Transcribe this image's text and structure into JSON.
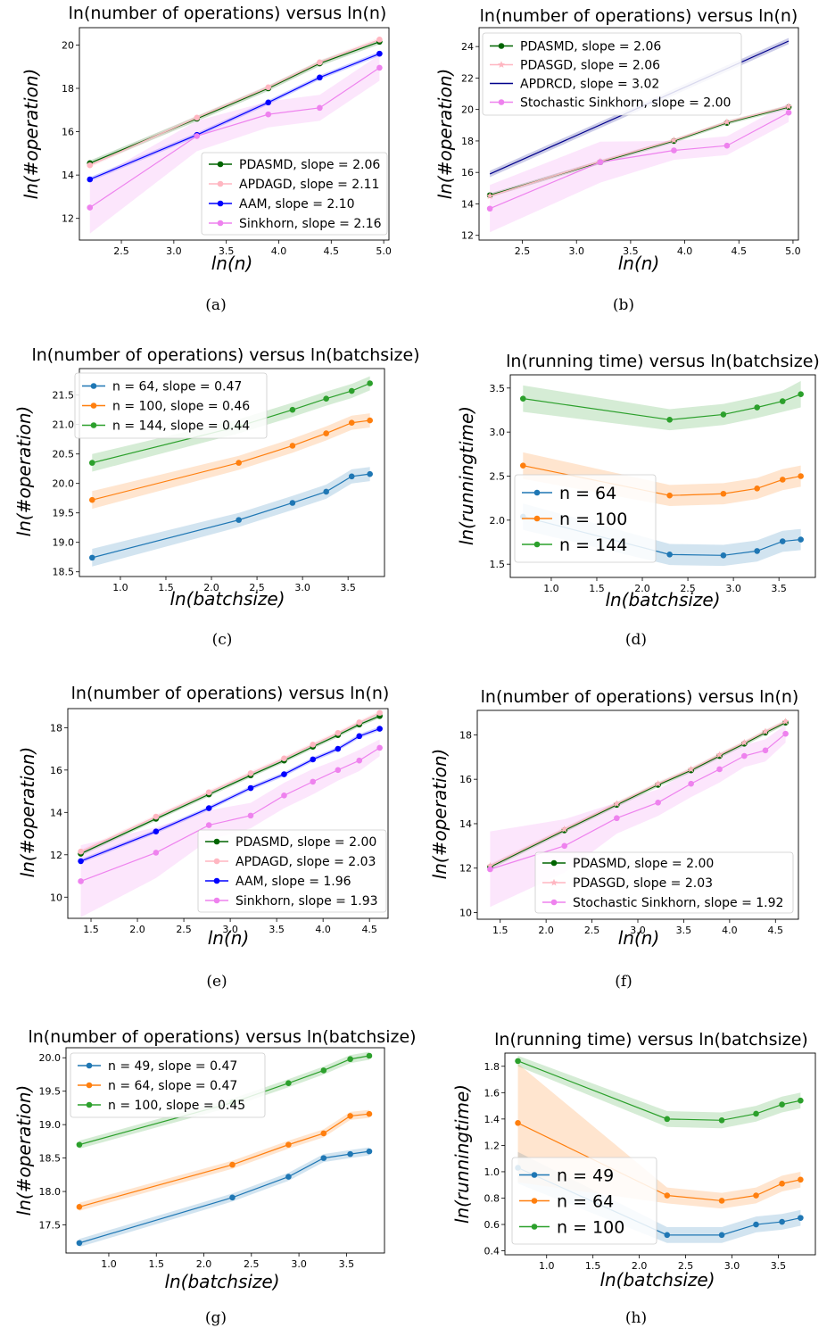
{
  "chart_data": [
    {
      "panel": "a",
      "type": "line",
      "title": "ln(number of operations) versus ln(n)",
      "xlabel": "ln(n)",
      "ylabel": "ln(#operation)",
      "xlim": [
        2.1,
        5.05
      ],
      "ylim": [
        11.0,
        20.8
      ],
      "xticks": [
        2.5,
        3.0,
        3.5,
        4.0,
        4.5,
        5.0
      ],
      "yticks": [
        12,
        14,
        16,
        18,
        20
      ],
      "legend_position": "lower-right",
      "caption": "(a)",
      "series": [
        {
          "name": "PDASMD, slope = 2.06",
          "color": "#006400",
          "marker": "o",
          "x": [
            2.2,
            3.22,
            3.9,
            4.39,
            4.96
          ],
          "y": [
            14.55,
            16.6,
            18.0,
            19.15,
            20.15
          ],
          "band": [
            0.12,
            0.12,
            0.12,
            0.12,
            0.12
          ]
        },
        {
          "name": "APDAGD, slope = 2.11",
          "color": "#ffb6c1",
          "marker": "o",
          "x": [
            2.2,
            3.22,
            3.9,
            4.39,
            4.96
          ],
          "y": [
            14.45,
            16.65,
            18.05,
            19.2,
            20.25
          ],
          "band": [
            0.1,
            0.1,
            0.1,
            0.1,
            0.1
          ]
        },
        {
          "name": "AAM, slope = 2.10",
          "color": "#0000ff",
          "marker": "o",
          "x": [
            2.2,
            3.22,
            3.9,
            4.39,
            4.96
          ],
          "y": [
            13.8,
            15.85,
            17.35,
            18.5,
            19.6
          ],
          "band": [
            0.1,
            0.1,
            0.1,
            0.1,
            0.1
          ]
        },
        {
          "name": "Sinkhorn, slope = 2.16",
          "color": "#ee82ee",
          "marker": "o",
          "x": [
            2.2,
            3.22,
            3.9,
            4.39,
            4.96
          ],
          "y": [
            12.5,
            15.8,
            16.8,
            17.1,
            18.95
          ],
          "band": [
            1.2,
            0.7,
            0.6,
            0.6,
            0.6
          ]
        }
      ]
    },
    {
      "panel": "b",
      "type": "line",
      "title": "ln(number of operations) versus ln(n)",
      "xlabel": "ln(n)",
      "ylabel": "ln(#operation)",
      "xlim": [
        2.1,
        5.05
      ],
      "ylim": [
        11.7,
        25.2
      ],
      "xticks": [
        2.5,
        3.0,
        3.5,
        4.0,
        4.5,
        5.0
      ],
      "yticks": [
        12,
        14,
        16,
        18,
        20,
        22,
        24
      ],
      "legend_position": "upper-left",
      "caption": "(b)",
      "series": [
        {
          "name": "PDASMD, slope = 2.06",
          "color": "#006400",
          "marker": "o",
          "x": [
            2.2,
            3.22,
            3.9,
            4.39,
            4.96
          ],
          "y": [
            14.55,
            16.65,
            18.0,
            19.15,
            20.15
          ],
          "band": [
            0.12,
            0.12,
            0.12,
            0.12,
            0.12
          ]
        },
        {
          "name": "PDASGD, slope = 2.06",
          "color": "#ffb6c1",
          "marker": "*",
          "x": [
            2.2,
            3.22,
            3.9,
            4.39,
            4.96
          ],
          "y": [
            14.5,
            16.7,
            18.05,
            19.2,
            20.2
          ],
          "band": [
            0.1,
            0.1,
            0.1,
            0.1,
            0.1
          ]
        },
        {
          "name": "APDRCD, slope = 3.02",
          "color": "#00008b",
          "marker": "",
          "x": [
            2.2,
            4.96
          ],
          "y": [
            15.9,
            24.35
          ],
          "band": [
            0.2,
            0.2
          ]
        },
        {
          "name": "Stochastic Sinkhorn, slope = 2.00",
          "color": "#ee82ee",
          "marker": "o",
          "x": [
            2.2,
            3.22,
            3.9,
            4.39,
            4.96
          ],
          "y": [
            13.7,
            16.65,
            17.4,
            17.7,
            19.8
          ],
          "band": [
            1.5,
            1.3,
            0.6,
            0.6,
            0.6
          ]
        }
      ]
    },
    {
      "panel": "c",
      "type": "line",
      "title": "ln(number of operations) versus ln(batchsize)",
      "xlabel": "ln(batchsize)",
      "ylabel": "ln(#operation)",
      "xlim": [
        0.55,
        3.9
      ],
      "ylim": [
        18.42,
        21.95
      ],
      "xticks": [
        1.0,
        1.5,
        2.0,
        2.5,
        3.0,
        3.5
      ],
      "yticks": [
        18.5,
        19.0,
        19.5,
        20.0,
        20.5,
        21.0,
        21.5
      ],
      "legend_position": "upper-left",
      "caption": "(c)",
      "series": [
        {
          "name": "n = 64, slope = 0.47",
          "color": "#1f77b4",
          "marker": "o",
          "x": [
            0.69,
            2.3,
            2.89,
            3.26,
            3.54,
            3.74
          ],
          "y": [
            18.74,
            19.38,
            19.67,
            19.86,
            20.12,
            20.16
          ],
          "band": [
            0.15,
            0.12,
            0.12,
            0.12,
            0.12,
            0.12
          ]
        },
        {
          "name": "n = 100, slope = 0.46",
          "color": "#ff7f0e",
          "marker": "o",
          "x": [
            0.69,
            2.3,
            2.89,
            3.26,
            3.54,
            3.74
          ],
          "y": [
            19.72,
            20.35,
            20.64,
            20.85,
            21.03,
            21.07
          ],
          "band": [
            0.15,
            0.12,
            0.12,
            0.12,
            0.12,
            0.12
          ]
        },
        {
          "name": "n = 144, slope = 0.44",
          "color": "#2ca02c",
          "marker": "o",
          "x": [
            0.69,
            2.3,
            2.89,
            3.26,
            3.54,
            3.74
          ],
          "y": [
            20.35,
            20.97,
            21.25,
            21.44,
            21.57,
            21.7
          ],
          "band": [
            0.15,
            0.12,
            0.12,
            0.12,
            0.12,
            0.12
          ]
        }
      ]
    },
    {
      "panel": "d",
      "type": "line",
      "title": "ln(running time) versus ln(batchsize)",
      "xlabel": "ln(batchsize)",
      "ylabel": "ln(runningtime)",
      "xlim": [
        0.55,
        3.9
      ],
      "ylim": [
        1.35,
        3.65
      ],
      "xticks": [
        1.0,
        1.5,
        2.0,
        2.5,
        3.0,
        3.5
      ],
      "yticks": [
        1.5,
        2.0,
        2.5,
        3.0,
        3.5
      ],
      "legend_position": "lower-left",
      "caption": "(d)",
      "series": [
        {
          "name": "n = 64",
          "color": "#1f77b4",
          "marker": "o",
          "x": [
            0.69,
            2.3,
            2.89,
            3.26,
            3.54,
            3.74
          ],
          "y": [
            2.04,
            1.61,
            1.6,
            1.65,
            1.76,
            1.78
          ],
          "band": [
            0.15,
            0.12,
            0.12,
            0.12,
            0.12,
            0.12
          ]
        },
        {
          "name": "n = 100",
          "color": "#ff7f0e",
          "marker": "o",
          "x": [
            0.69,
            2.3,
            2.89,
            3.26,
            3.54,
            3.74
          ],
          "y": [
            2.62,
            2.28,
            2.3,
            2.36,
            2.46,
            2.5
          ],
          "band": [
            0.15,
            0.12,
            0.12,
            0.12,
            0.12,
            0.12
          ]
        },
        {
          "name": "n = 144",
          "color": "#2ca02c",
          "marker": "o",
          "x": [
            0.69,
            2.3,
            2.89,
            3.26,
            3.54,
            3.74
          ],
          "y": [
            3.38,
            3.14,
            3.2,
            3.28,
            3.35,
            3.43
          ],
          "band": [
            0.15,
            0.12,
            0.12,
            0.12,
            0.12,
            0.15
          ]
        }
      ]
    },
    {
      "panel": "e",
      "type": "line",
      "title": "ln(number of operations) versus ln(n)",
      "xlabel": "ln(n)",
      "ylabel": "ln(#operation)",
      "xlim": [
        1.25,
        4.7
      ],
      "ylim": [
        9.0,
        18.9
      ],
      "xticks": [
        1.5,
        2.0,
        2.5,
        3.0,
        3.5,
        4.0,
        4.5
      ],
      "yticks": [
        10,
        12,
        14,
        16,
        18
      ],
      "legend_position": "lower-right",
      "caption": "(e)",
      "series": [
        {
          "name": "PDASMD, slope = 2.00",
          "color": "#006400",
          "marker": "o",
          "x": [
            1.39,
            2.2,
            2.77,
            3.22,
            3.58,
            3.89,
            4.16,
            4.39,
            4.61
          ],
          "y": [
            12.05,
            13.7,
            14.85,
            15.75,
            16.45,
            17.1,
            17.65,
            18.15,
            18.55
          ],
          "band": [
            0.1,
            0.1,
            0.1,
            0.1,
            0.1,
            0.1,
            0.1,
            0.1,
            0.1
          ]
        },
        {
          "name": "APDAGD, slope = 2.03",
          "color": "#ffb6c1",
          "marker": "o",
          "x": [
            1.39,
            2.2,
            2.77,
            3.22,
            3.58,
            3.89,
            4.16,
            4.39,
            4.61
          ],
          "y": [
            12.15,
            13.8,
            14.95,
            15.85,
            16.55,
            17.2,
            17.75,
            18.25,
            18.7
          ],
          "band": [
            0.1,
            0.1,
            0.1,
            0.1,
            0.1,
            0.1,
            0.1,
            0.1,
            0.1
          ]
        },
        {
          "name": "AAM, slope = 1.96",
          "color": "#0000ff",
          "marker": "o",
          "x": [
            1.39,
            2.2,
            2.77,
            3.22,
            3.58,
            3.89,
            4.16,
            4.39,
            4.61
          ],
          "y": [
            11.7,
            13.1,
            14.2,
            15.15,
            15.8,
            16.5,
            17.0,
            17.6,
            17.95
          ],
          "band": [
            0.1,
            0.1,
            0.1,
            0.1,
            0.1,
            0.1,
            0.1,
            0.1,
            0.1
          ]
        },
        {
          "name": "Sinkhorn, slope = 1.93",
          "color": "#ee82ee",
          "marker": "o",
          "x": [
            1.39,
            2.2,
            2.77,
            3.22,
            3.58,
            3.89,
            4.16,
            4.39,
            4.61
          ],
          "y": [
            10.75,
            12.1,
            13.4,
            13.85,
            14.8,
            15.45,
            16.0,
            16.45,
            17.05
          ],
          "band": [
            1.7,
            1.2,
            0.7,
            0.6,
            0.6,
            0.6,
            0.5,
            0.5,
            0.4
          ]
        }
      ]
    },
    {
      "panel": "f",
      "type": "line",
      "title": "ln(number of operations) versus ln(n)",
      "xlabel": "ln(n)",
      "ylabel": "ln(#operation)",
      "xlim": [
        1.25,
        4.75
      ],
      "ylim": [
        9.7,
        19.1
      ],
      "xticks": [
        1.5,
        2.0,
        2.5,
        3.0,
        3.5,
        4.0,
        4.5
      ],
      "yticks": [
        10,
        12,
        14,
        16,
        18
      ],
      "legend_position": "lower-right",
      "caption": "(f)",
      "series": [
        {
          "name": "PDASMD, slope = 2.00",
          "color": "#006400",
          "marker": "o",
          "x": [
            1.39,
            2.2,
            2.77,
            3.22,
            3.58,
            3.89,
            4.16,
            4.39,
            4.61
          ],
          "y": [
            12.05,
            13.7,
            14.85,
            15.75,
            16.4,
            17.05,
            17.6,
            18.1,
            18.55
          ],
          "band": [
            0.1,
            0.1,
            0.1,
            0.1,
            0.1,
            0.1,
            0.1,
            0.1,
            0.1
          ]
        },
        {
          "name": "PDASGD, slope = 2.03",
          "color": "#ffb6c1",
          "marker": "*",
          "x": [
            1.39,
            2.2,
            2.77,
            3.22,
            3.58,
            3.89,
            4.16,
            4.39,
            4.61
          ],
          "y": [
            12.1,
            13.75,
            14.9,
            15.8,
            16.45,
            17.1,
            17.65,
            18.15,
            18.6
          ],
          "band": [
            0.1,
            0.1,
            0.1,
            0.1,
            0.1,
            0.1,
            0.1,
            0.1,
            0.1
          ]
        },
        {
          "name": "Stochastic Sinkhorn, slope = 1.92",
          "color": "#ee82ee",
          "marker": "o",
          "x": [
            1.39,
            2.2,
            2.77,
            3.22,
            3.58,
            3.89,
            4.16,
            4.39,
            4.61
          ],
          "y": [
            11.95,
            13.0,
            14.25,
            14.95,
            15.8,
            16.45,
            17.05,
            17.3,
            18.05
          ],
          "band": [
            1.7,
            1.2,
            0.7,
            0.6,
            0.6,
            0.6,
            0.5,
            0.5,
            0.4
          ]
        }
      ]
    },
    {
      "panel": "g",
      "type": "line",
      "title": "ln(number of operations) versus ln(batchsize)",
      "xlabel": "ln(batchsize)",
      "ylabel": "ln(#operation)",
      "xlim": [
        0.55,
        3.9
      ],
      "ylim": [
        17.08,
        20.15
      ],
      "xticks": [
        1.0,
        1.5,
        2.0,
        2.5,
        3.0,
        3.5
      ],
      "yticks": [
        17.5,
        18.0,
        18.5,
        19.0,
        19.5,
        20.0
      ],
      "legend_position": "upper-left",
      "caption": "(g)",
      "series": [
        {
          "name": "n = 49, slope = 0.47",
          "color": "#1f77b4",
          "marker": "o",
          "x": [
            0.69,
            2.3,
            2.89,
            3.26,
            3.54,
            3.74
          ],
          "y": [
            17.23,
            17.91,
            18.22,
            18.5,
            18.56,
            18.6
          ],
          "band": [
            0.06,
            0.06,
            0.06,
            0.06,
            0.06,
            0.06
          ]
        },
        {
          "name": "n = 64, slope = 0.47",
          "color": "#ff7f0e",
          "marker": "o",
          "x": [
            0.69,
            2.3,
            2.89,
            3.26,
            3.54,
            3.74
          ],
          "y": [
            17.77,
            18.4,
            18.7,
            18.87,
            19.13,
            19.16
          ],
          "band": [
            0.06,
            0.06,
            0.06,
            0.06,
            0.06,
            0.06
          ]
        },
        {
          "name": "n = 100, slope = 0.45",
          "color": "#2ca02c",
          "marker": "o",
          "x": [
            0.69,
            2.3,
            2.89,
            3.26,
            3.54,
            3.74
          ],
          "y": [
            18.7,
            19.33,
            19.62,
            19.81,
            19.98,
            20.03
          ],
          "band": [
            0.06,
            0.06,
            0.06,
            0.06,
            0.06,
            0.06
          ]
        }
      ]
    },
    {
      "panel": "h",
      "type": "line",
      "title": "ln(running time) versus ln(batchsize)",
      "xlabel": "ln(batchsize)",
      "ylabel": "ln(runningtime)",
      "xlim": [
        0.55,
        3.9
      ],
      "ylim": [
        0.37,
        1.9
      ],
      "xticks": [
        1.0,
        1.5,
        2.0,
        2.5,
        3.0,
        3.5
      ],
      "yticks": [
        0.4,
        0.6,
        0.8,
        1.0,
        1.2,
        1.4,
        1.6,
        1.8
      ],
      "legend_position": "lower-left",
      "caption": "(h)",
      "series": [
        {
          "name": "n = 49",
          "color": "#1f77b4",
          "marker": "o",
          "x": [
            0.69,
            2.3,
            2.89,
            3.26,
            3.54,
            3.74
          ],
          "y": [
            1.03,
            0.52,
            0.52,
            0.6,
            0.62,
            0.65
          ],
          "band": [
            0.12,
            0.06,
            0.06,
            0.06,
            0.06,
            0.06
          ]
        },
        {
          "name": "n = 64",
          "color": "#ff7f0e",
          "marker": "o",
          "x": [
            0.69,
            2.3,
            2.89,
            3.26,
            3.54,
            3.74
          ],
          "y": [
            1.37,
            0.82,
            0.78,
            0.82,
            0.91,
            0.94
          ],
          "band": [
            0.45,
            0.06,
            0.06,
            0.06,
            0.06,
            0.06
          ]
        },
        {
          "name": "n = 100",
          "color": "#2ca02c",
          "marker": "o",
          "x": [
            0.69,
            2.3,
            2.89,
            3.26,
            3.54,
            3.74
          ],
          "y": [
            1.84,
            1.4,
            1.39,
            1.44,
            1.51,
            1.54
          ],
          "band": [
            0.04,
            0.06,
            0.06,
            0.06,
            0.06,
            0.06
          ]
        }
      ]
    }
  ]
}
